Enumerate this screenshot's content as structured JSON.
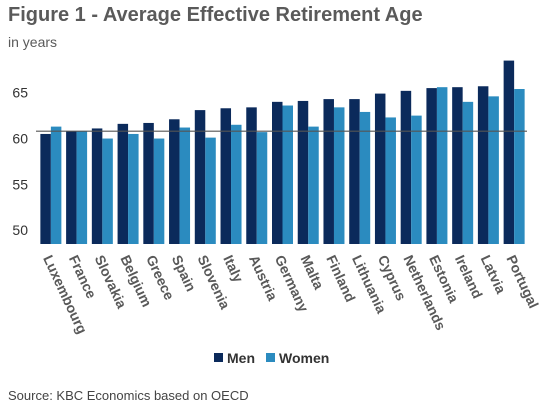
{
  "title": "Figure 1 - Average Effective Retirement Age",
  "subtitle": "in years",
  "source": "Source: KBC Economics based on OECD",
  "colors": {
    "men": "#0b2a5b",
    "women": "#2b8bbf",
    "reference_line": "#555555"
  },
  "chart_data": {
    "type": "bar",
    "categories": [
      "Luxembourg",
      "France",
      "Slovakia",
      "Belgium",
      "Greece",
      "Spain",
      "Slovenia",
      "Italy",
      "Austria",
      "Germany",
      "Malta",
      "Finland",
      "Lithuania",
      "Cyprus",
      "Netherlands",
      "Estonia",
      "Ireland",
      "Latvia",
      "Portugal"
    ],
    "series": [
      {
        "name": "Men",
        "values": [
          60.5,
          60.8,
          61.1,
          61.6,
          61.7,
          62.1,
          63.1,
          63.3,
          63.4,
          64.0,
          64.1,
          64.3,
          64.3,
          64.9,
          65.2,
          65.5,
          65.6,
          65.7,
          68.5
        ]
      },
      {
        "name": "Women",
        "values": [
          61.3,
          60.8,
          60.0,
          60.5,
          60.0,
          61.2,
          60.1,
          61.5,
          60.7,
          63.6,
          61.3,
          63.4,
          62.9,
          62.3,
          62.5,
          65.6,
          64.0,
          64.6,
          65.4
        ]
      }
    ],
    "reference_line": 60.8,
    "ylim": [
      48.5,
      69
    ],
    "yticks": [
      50,
      55,
      60,
      65
    ],
    "xlabel": "",
    "ylabel": "",
    "legend": "bottom-center",
    "grid": false
  }
}
